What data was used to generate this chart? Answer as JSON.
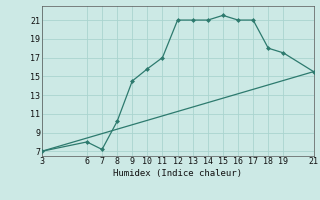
{
  "xlabel": "Humidex (Indice chaleur)",
  "background_color": "#cce9e5",
  "grid_color": "#aad4cf",
  "line_color": "#2d7a6e",
  "xlim": [
    3,
    21
  ],
  "ylim": [
    6.5,
    22.5
  ],
  "xticks": [
    3,
    6,
    7,
    8,
    9,
    10,
    11,
    12,
    13,
    14,
    15,
    16,
    17,
    18,
    19,
    21
  ],
  "yticks": [
    7,
    9,
    11,
    13,
    15,
    17,
    19,
    21
  ],
  "line1_x": [
    3,
    6,
    7,
    8,
    9,
    10,
    11,
    12,
    13,
    14,
    15,
    16,
    17,
    18,
    19,
    21
  ],
  "line1_y": [
    7.0,
    8.0,
    7.2,
    10.2,
    14.5,
    15.8,
    17.0,
    21.0,
    21.0,
    21.0,
    21.5,
    21.0,
    21.0,
    18.0,
    17.5,
    15.5
  ],
  "line2_x": [
    3,
    21
  ],
  "line2_y": [
    7.0,
    15.5
  ],
  "marker_size": 2.5,
  "linewidth": 0.9,
  "tick_fontsize": 6.0,
  "xlabel_fontsize": 6.5
}
